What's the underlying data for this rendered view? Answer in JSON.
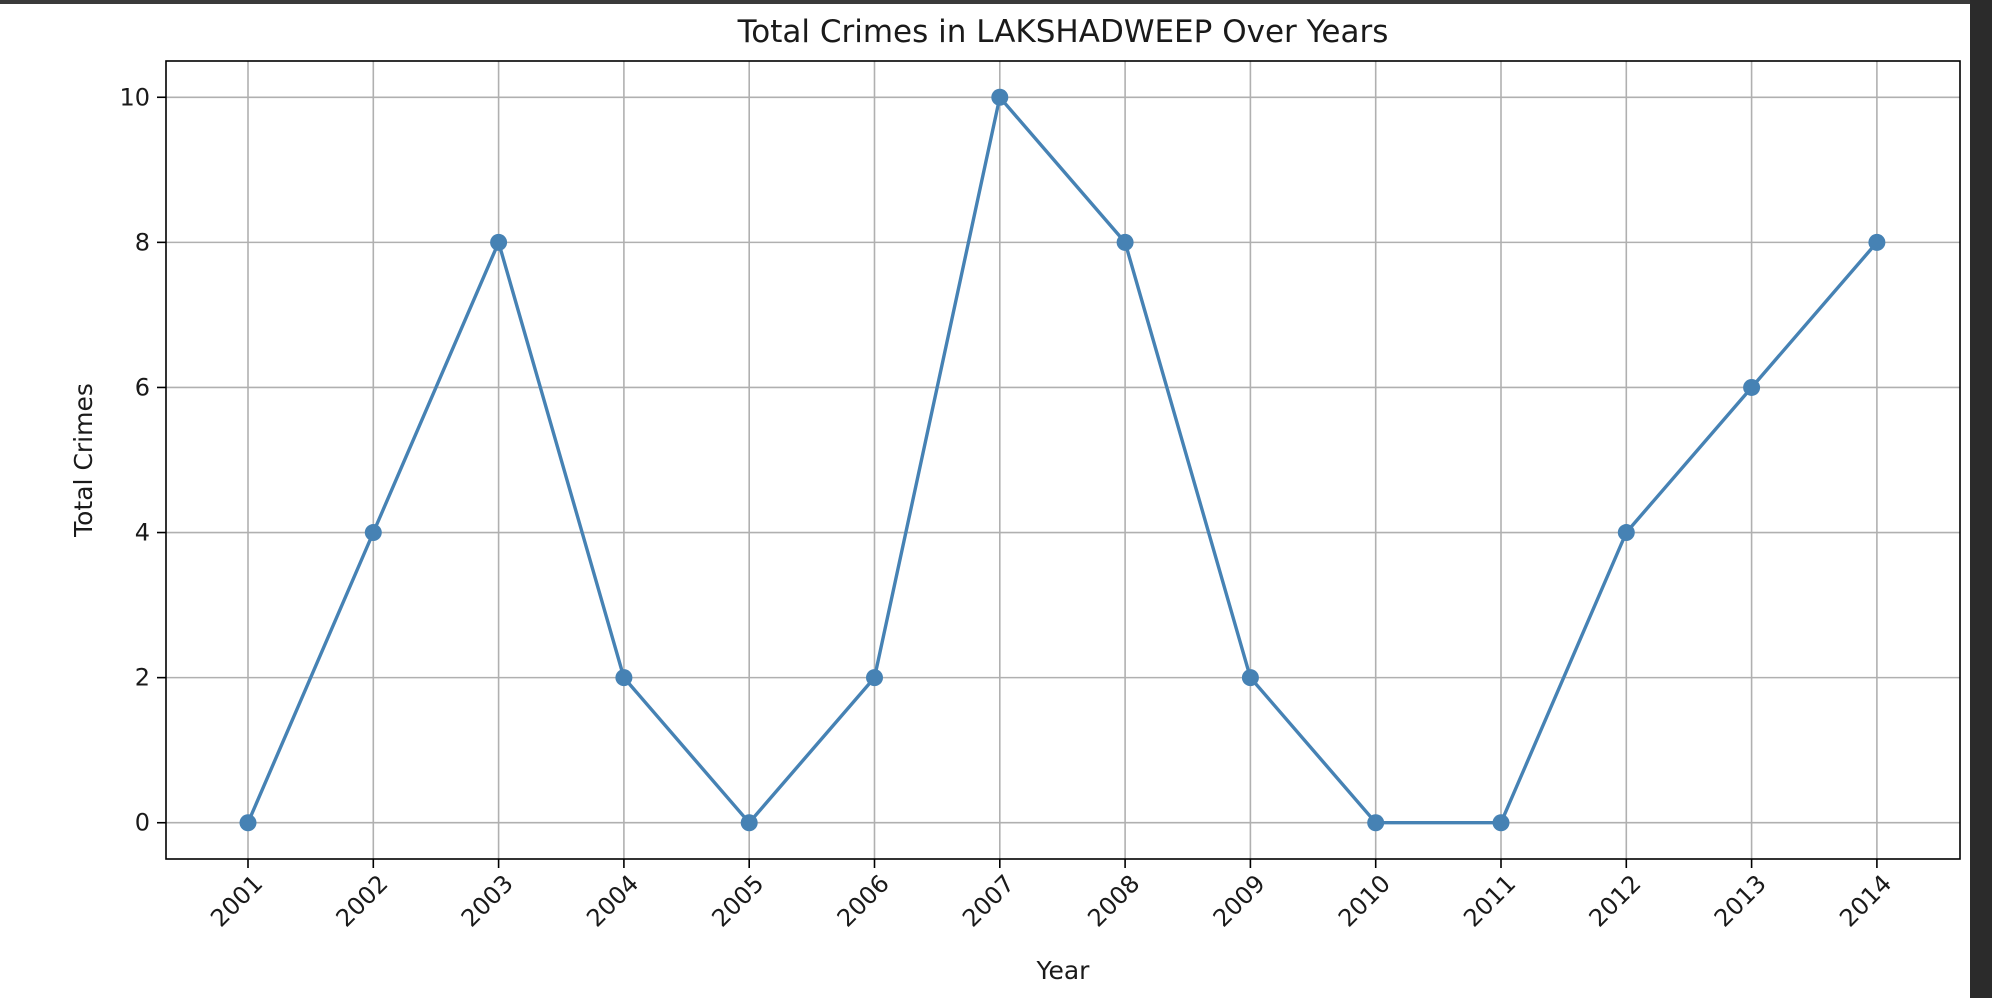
{
  "chart_data": {
    "type": "line",
    "title": "Total Crimes in LAKSHADWEEP Over Years",
    "xlabel": "Year",
    "ylabel": "Total Crimes",
    "categories": [
      "2001",
      "2002",
      "2003",
      "2004",
      "2005",
      "2006",
      "2007",
      "2008",
      "2009",
      "2010",
      "2011",
      "2012",
      "2013",
      "2014"
    ],
    "series": [
      {
        "values": [
          0,
          4,
          8,
          2,
          0,
          2,
          10,
          8,
          2,
          0,
          0,
          4,
          6,
          8
        ],
        "color": "#4682b4",
        "marker": "circle"
      }
    ],
    "yticks": [
      "0",
      "2",
      "4",
      "6",
      "8",
      "10"
    ],
    "ylim": [
      -0.5,
      10.5
    ],
    "grid": true,
    "legend": "none"
  }
}
